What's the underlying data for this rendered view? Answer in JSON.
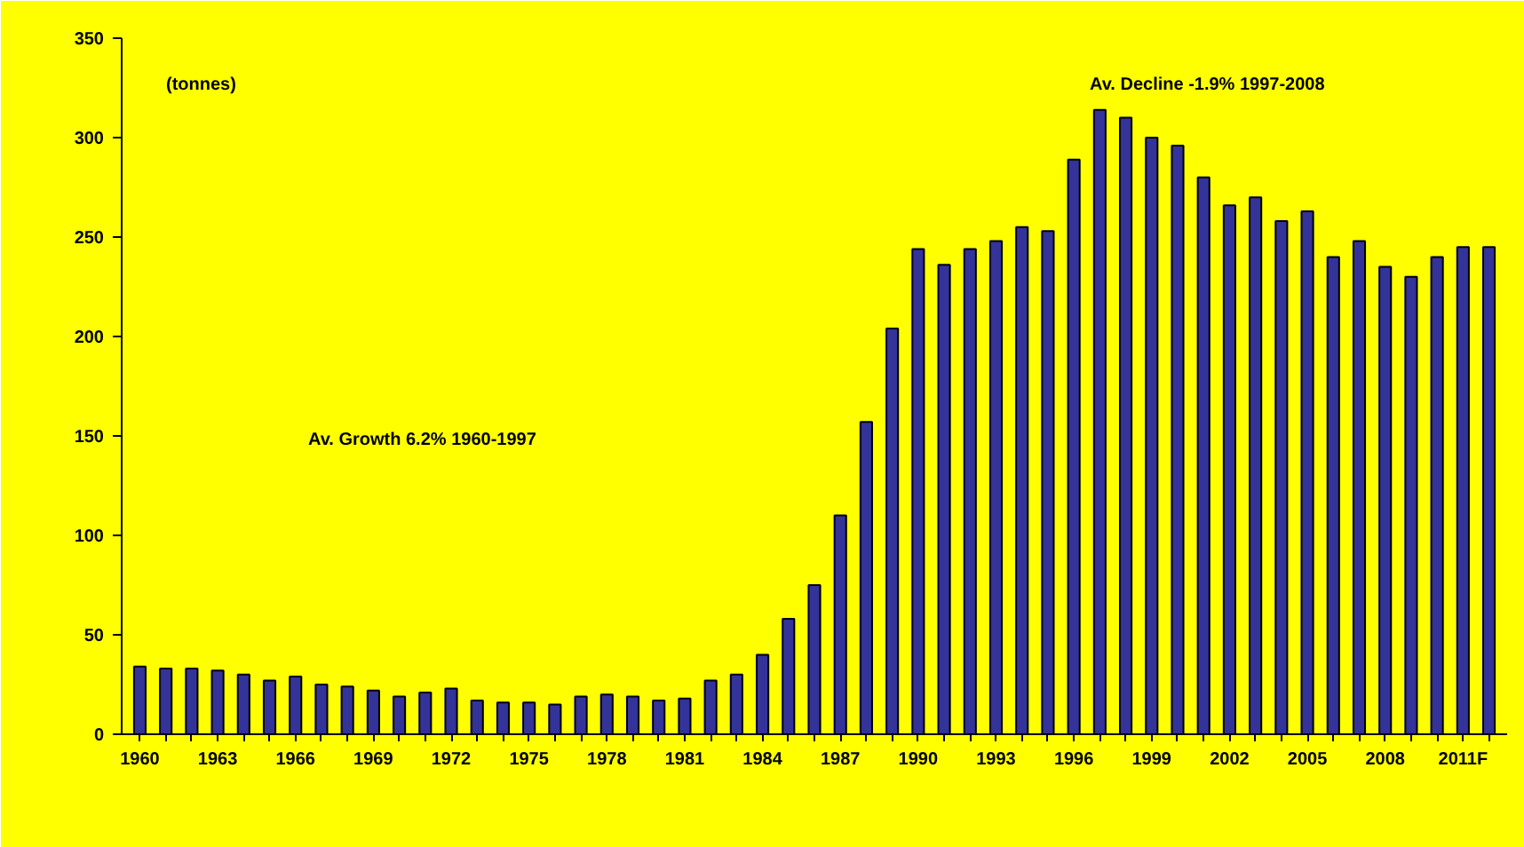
{
  "chart_data": {
    "type": "bar",
    "categories": [
      "1960",
      null,
      null,
      "1963",
      null,
      null,
      "1966",
      null,
      null,
      "1969",
      null,
      null,
      "1972",
      null,
      null,
      "1975",
      null,
      null,
      "1978",
      null,
      null,
      "1981",
      null,
      null,
      "1984",
      null,
      null,
      "1987",
      null,
      null,
      "1990",
      null,
      null,
      "1993",
      null,
      null,
      "1996",
      null,
      null,
      "1999",
      null,
      null,
      "2002",
      null,
      null,
      "2005",
      null,
      null,
      "2008",
      null,
      null,
      "2011F",
      null
    ],
    "values": [
      34,
      33,
      33,
      32,
      30,
      27,
      29,
      25,
      24,
      22,
      19,
      21,
      23,
      17,
      16,
      16,
      15,
      19,
      20,
      19,
      17,
      18,
      27,
      30,
      40,
      58,
      75,
      110,
      157,
      204,
      244,
      236,
      244,
      248,
      255,
      253,
      289,
      314,
      310,
      300,
      296,
      280,
      266,
      270,
      258,
      263,
      240,
      248,
      235,
      230,
      240,
      245,
      245
    ],
    "color": "#333399",
    "ylim": [
      0,
      350
    ],
    "yticks": [
      0,
      50,
      100,
      150,
      200,
      250,
      300,
      350
    ],
    "grid": false,
    "annotations": [
      "(tonnes)",
      "Av. Growth 6.2% 1960-1997",
      "Av. Decline -1.9% 1997-2008"
    ]
  }
}
